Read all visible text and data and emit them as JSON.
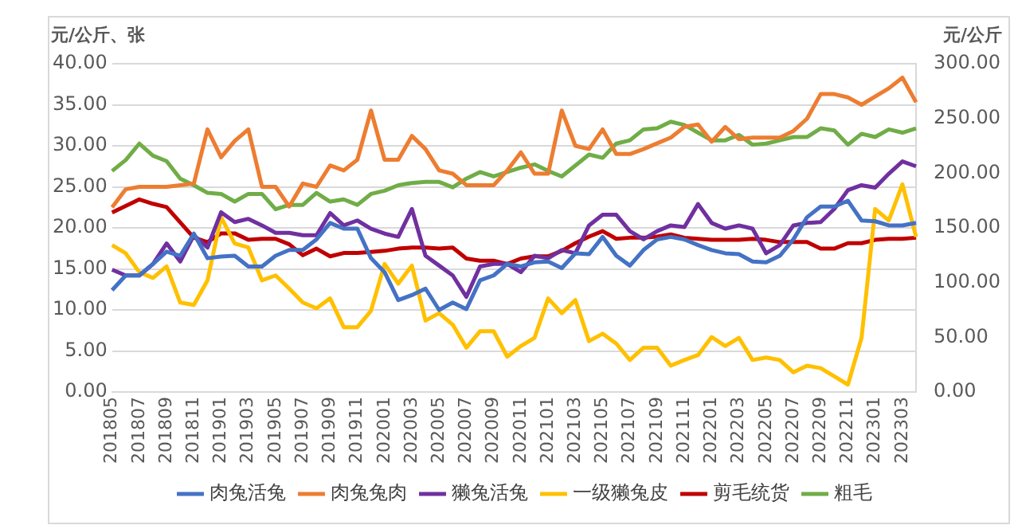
{
  "chart_data": {
    "type": "line",
    "ylabel": "元/公斤、张",
    "y2label": "元/公斤",
    "categories": [
      "201805",
      null,
      "201807",
      null,
      "201809",
      null,
      "201811",
      null,
      "201901",
      null,
      "201903",
      null,
      "201905",
      null,
      "201907",
      null,
      "201909",
      null,
      "201911",
      null,
      "202001",
      null,
      "202003",
      null,
      "202005",
      null,
      "202007",
      null,
      "202009",
      null,
      "202011",
      null,
      "202101",
      null,
      "202103",
      null,
      "202105",
      null,
      "202107",
      null,
      "202109",
      null,
      "202111",
      null,
      "202201",
      null,
      "202203",
      null,
      "202205",
      null,
      "202207",
      null,
      "202209",
      null,
      "202211",
      null,
      "202301",
      null,
      "202303",
      null
    ],
    "series": [
      {
        "name": "肉兔活兔",
        "color": "#4472c4",
        "values": [
          12.4,
          14.2,
          14.2,
          15.6,
          17.1,
          16.6,
          19.3,
          16.3,
          16.5,
          16.6,
          15.3,
          15.3,
          16.6,
          17.3,
          17.3,
          18.6,
          20.6,
          19.9,
          19.9,
          16.3,
          14.6,
          11.2,
          11.8,
          12.6,
          10.0,
          10.9,
          10.1,
          13.6,
          14.2,
          15.6,
          15.3,
          15.8,
          15.9,
          15.1,
          16.9,
          16.8,
          18.9,
          16.6,
          15.4,
          17.3,
          18.6,
          18.9,
          18.6,
          17.9,
          17.3,
          16.9,
          16.8,
          15.9,
          15.8,
          16.6,
          18.6,
          21.3,
          22.6,
          22.6,
          23.3,
          20.9,
          20.8,
          20.3,
          20.3,
          20.6
        ]
      },
      {
        "name": "肉兔兔肉",
        "color": "#ed7d31",
        "values": [
          22.5,
          24.7,
          25.0,
          25.0,
          25.0,
          25.2,
          25.4,
          32.0,
          28.6,
          30.6,
          32.0,
          25.0,
          25.0,
          22.6,
          25.4,
          25.0,
          27.6,
          27.0,
          28.3,
          34.3,
          28.3,
          28.3,
          31.2,
          29.6,
          27.0,
          26.6,
          25.2,
          25.2,
          25.2,
          27.0,
          29.2,
          26.6,
          26.6,
          34.3,
          30.0,
          29.6,
          32.0,
          29.0,
          29.0,
          29.6,
          30.3,
          31.0,
          32.3,
          32.6,
          30.5,
          32.3,
          30.8,
          31.0,
          31.0,
          31.0,
          31.8,
          33.3,
          36.3,
          36.3,
          35.9,
          35.0,
          36.0,
          37.0,
          38.3,
          35.3
        ]
      },
      {
        "name": "獭兔活兔",
        "color": "#7030a0",
        "values": [
          14.9,
          14.2,
          14.2,
          15.6,
          18.1,
          15.9,
          19.1,
          17.6,
          21.9,
          20.7,
          21.1,
          20.3,
          19.4,
          19.4,
          19.1,
          19.1,
          21.8,
          20.3,
          20.9,
          19.9,
          19.3,
          18.9,
          22.3,
          16.6,
          15.4,
          14.2,
          11.6,
          15.3,
          15.6,
          15.6,
          14.6,
          16.6,
          16.3,
          17.3,
          16.9,
          20.3,
          21.6,
          21.6,
          19.6,
          18.6,
          19.6,
          20.3,
          20.1,
          22.9,
          20.6,
          19.9,
          20.3,
          19.9,
          16.9,
          17.9,
          20.3,
          20.6,
          20.7,
          22.3,
          24.6,
          25.2,
          24.9,
          26.6,
          28.1,
          27.5
        ]
      },
      {
        "name": "一级獭兔皮",
        "color": "#ffc000",
        "values": [
          17.9,
          16.9,
          14.6,
          13.9,
          15.3,
          10.9,
          10.6,
          13.6,
          21.3,
          18.1,
          17.6,
          13.6,
          14.2,
          12.6,
          10.9,
          10.2,
          11.4,
          7.9,
          7.9,
          9.9,
          15.6,
          13.2,
          15.4,
          8.7,
          9.6,
          8.2,
          5.4,
          7.4,
          7.4,
          4.3,
          5.6,
          6.6,
          11.4,
          9.6,
          11.2,
          6.2,
          7.1,
          5.9,
          3.9,
          5.4,
          5.4,
          3.2,
          3.9,
          4.5,
          6.7,
          5.6,
          6.6,
          3.9,
          4.2,
          3.9,
          2.4,
          3.2,
          2.9,
          1.9,
          0.9,
          6.6,
          22.3,
          20.9,
          25.3,
          18.9
        ]
      },
      {
        "name": "剪毛统货",
        "color": "#c00000",
        "axis": "y2",
        "values": [
          164,
          170,
          176,
          172,
          169,
          155,
          141,
          137,
          145,
          145,
          139,
          140,
          140,
          135,
          125,
          131,
          124,
          127,
          127,
          128,
          129,
          131,
          132,
          132,
          131,
          132,
          122,
          120,
          120,
          117,
          122,
          124,
          124,
          129,
          136,
          142,
          147,
          140,
          141,
          141,
          142,
          144,
          141,
          140,
          139,
          139,
          139,
          140,
          139,
          137,
          137,
          137,
          131,
          131,
          136,
          136,
          139,
          140,
          140,
          141
        ]
      },
      {
        "name": "粗毛",
        "color": "#70ad47",
        "axis": "y2",
        "values": [
          202,
          212,
          227,
          216,
          211,
          195,
          189,
          182,
          181,
          174,
          181,
          181,
          167,
          171,
          171,
          182,
          174,
          176,
          171,
          181,
          184,
          189,
          191,
          192,
          192,
          187,
          195,
          201,
          197,
          201,
          205,
          208,
          202,
          197,
          207,
          217,
          214,
          227,
          230,
          240,
          241,
          247,
          244,
          237,
          230,
          230,
          235,
          226,
          227,
          230,
          233,
          233,
          241,
          239,
          226,
          236,
          233,
          240,
          237,
          241
        ]
      }
    ],
    "ylim": [
      0,
      40
    ],
    "yticks": [
      {
        "value": 0,
        "label": "0.00"
      },
      {
        "value": 5,
        "label": "5.00"
      },
      {
        "value": 10,
        "label": "10.00"
      },
      {
        "value": 15,
        "label": "15.00"
      },
      {
        "value": 20,
        "label": "20.00"
      },
      {
        "value": 25,
        "label": "25.00"
      },
      {
        "value": 30,
        "label": "30.00"
      },
      {
        "value": 35,
        "label": "35.00"
      },
      {
        "value": 40,
        "label": "40.00"
      }
    ],
    "y2lim": [
      0,
      300
    ],
    "y2ticks": [
      {
        "value": 0,
        "label": "0.00"
      },
      {
        "value": 50,
        "label": "50.00"
      },
      {
        "value": 100,
        "label": "100.00"
      },
      {
        "value": 150,
        "label": "150.00"
      },
      {
        "value": 200,
        "label": "200.00"
      },
      {
        "value": 250,
        "label": "250.00"
      },
      {
        "value": 300,
        "label": "300.00"
      }
    ],
    "grid": "y",
    "legend": "bottom",
    "marker": "none",
    "line_style": "solid"
  }
}
